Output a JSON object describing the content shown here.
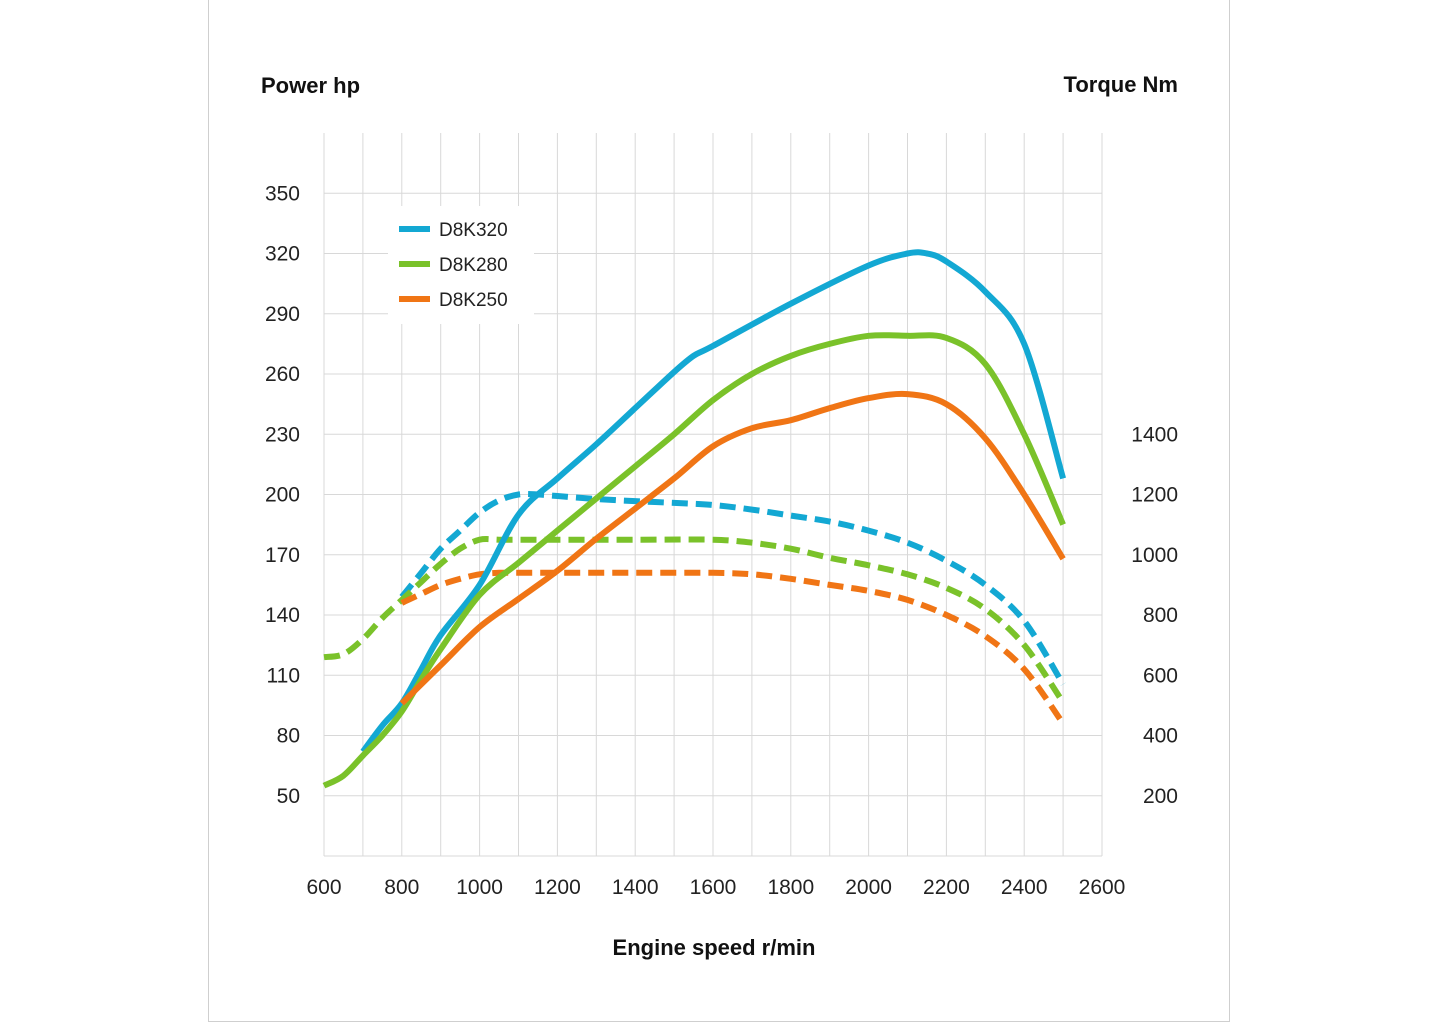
{
  "chart_data": {
    "type": "line",
    "left_axis_title": "Power hp",
    "right_axis_title": "Torque Nm",
    "xlabel": "Engine speed r/min",
    "x_ticks": [
      600,
      800,
      1000,
      1200,
      1400,
      1600,
      1800,
      2000,
      2200,
      2400,
      2600
    ],
    "y_left_ticks": [
      50,
      80,
      110,
      140,
      170,
      200,
      230,
      260,
      290,
      320,
      350
    ],
    "y_right_ticks": [
      200,
      400,
      600,
      800,
      1000,
      1200,
      1400
    ],
    "xlim": [
      600,
      2600
    ],
    "ylim_left": [
      20,
      380
    ],
    "ylim_right": [
      0,
      2400
    ],
    "grid": true,
    "legend_placement": "top-left",
    "series": [
      {
        "name": "D8K320",
        "color": "#13a8d3",
        "axis": "left",
        "style": "solid",
        "x": [
          700,
          750,
          800,
          850,
          900,
          1000,
          1100,
          1200,
          1300,
          1400,
          1500,
          1550,
          1600,
          1800,
          2000,
          2100,
          2150,
          2200,
          2300,
          2400,
          2500
        ],
        "y": [
          72,
          85,
          96,
          113,
          130,
          155,
          190,
          208,
          225,
          243,
          261,
          269,
          274,
          295,
          314,
          320,
          320,
          316,
          301,
          275,
          208
        ]
      },
      {
        "name": "D8K280",
        "color": "#7ac22a",
        "axis": "left",
        "style": "solid",
        "x": [
          600,
          650,
          700,
          750,
          800,
          850,
          900,
          1000,
          1100,
          1200,
          1300,
          1400,
          1500,
          1600,
          1700,
          1800,
          1900,
          2000,
          2100,
          2200,
          2300,
          2400,
          2500
        ],
        "y": [
          55,
          60,
          70,
          80,
          92,
          108,
          123,
          150,
          166,
          182,
          198,
          214,
          230,
          247,
          260,
          269,
          275,
          279,
          279,
          278,
          265,
          230,
          185
        ]
      },
      {
        "name": "D8K250",
        "color": "#f07515",
        "axis": "left",
        "style": "solid",
        "x": [
          800,
          900,
          1000,
          1100,
          1200,
          1300,
          1400,
          1500,
          1600,
          1700,
          1800,
          1900,
          2000,
          2100,
          2200,
          2300,
          2400,
          2500
        ],
        "y": [
          96,
          115,
          134,
          148,
          162,
          178,
          193,
          208,
          224,
          233,
          237,
          243,
          248,
          250,
          245,
          228,
          200,
          168
        ]
      },
      {
        "name": "D8K320 torque",
        "color": "#13a8d3",
        "axis": "right",
        "style": "dashed",
        "x": [
          800,
          850,
          900,
          950,
          1000,
          1050,
          1100,
          1150,
          1200,
          1300,
          1400,
          1500,
          1600,
          1700,
          1800,
          1900,
          2000,
          2100,
          2200,
          2300,
          2400,
          2500
        ],
        "y": [
          860,
          940,
          1020,
          1080,
          1140,
          1180,
          1200,
          1200,
          1195,
          1185,
          1178,
          1172,
          1165,
          1150,
          1130,
          1110,
          1080,
          1040,
          980,
          900,
          780,
          570
        ]
      },
      {
        "name": "D8K280 torque",
        "color": "#7ac22a",
        "axis": "right",
        "style": "dashed",
        "x": [
          600,
          650,
          700,
          750,
          800,
          850,
          900,
          950,
          1000,
          1050,
          1100,
          1200,
          1400,
          1600,
          1700,
          1800,
          1900,
          2000,
          2100,
          2200,
          2300,
          2400,
          2500
        ],
        "y": [
          660,
          670,
          720,
          790,
          850,
          910,
          970,
          1020,
          1050,
          1050,
          1050,
          1050,
          1050,
          1050,
          1040,
          1020,
          990,
          965,
          935,
          890,
          820,
          700,
          510
        ]
      },
      {
        "name": "D8K250 torque",
        "color": "#f07515",
        "axis": "right",
        "style": "dashed",
        "x": [
          800,
          850,
          900,
          950,
          1000,
          1050,
          1100,
          1200,
          1400,
          1600,
          1700,
          1800,
          1900,
          2000,
          2100,
          2200,
          2300,
          2400,
          2500
        ],
        "y": [
          840,
          870,
          900,
          920,
          935,
          940,
          940,
          940,
          940,
          940,
          935,
          920,
          900,
          880,
          850,
          800,
          730,
          620,
          440
        ]
      }
    ],
    "legend": [
      {
        "name": "D8K320",
        "color": "#13a8d3"
      },
      {
        "name": "D8K280",
        "color": "#7ac22a"
      },
      {
        "name": "D8K250",
        "color": "#f07515"
      }
    ]
  }
}
